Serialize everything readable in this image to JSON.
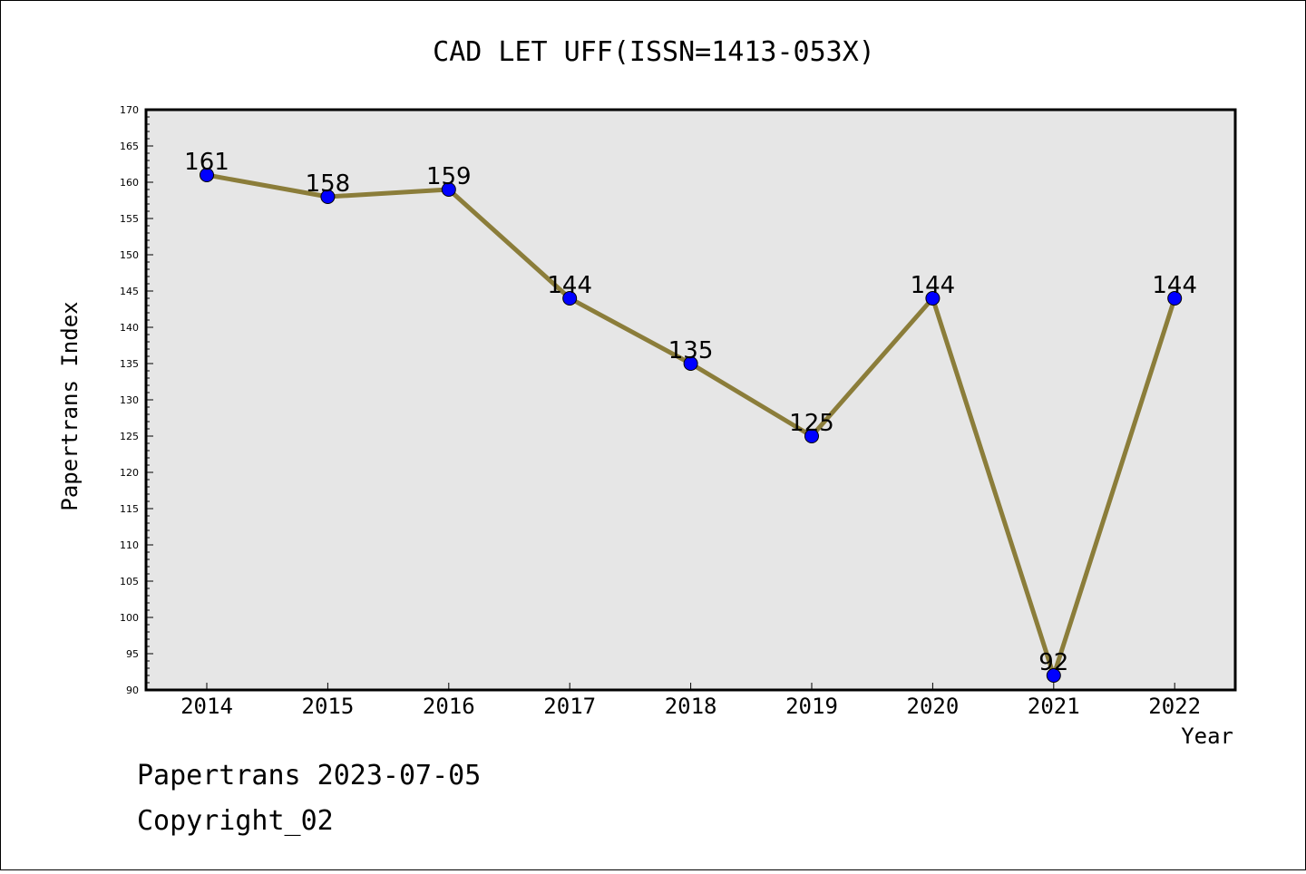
{
  "title": "CAD LET UFF(ISSN=1413-053X)",
  "footer": {
    "line1": "Papertrans 2023-07-05",
    "line2": "Copyright_02"
  },
  "colors": {
    "line": "#8b7d3a",
    "marker": "#0000ff",
    "plot_bg": "#e6e6e6"
  },
  "chart_data": {
    "type": "line",
    "title": "CAD LET UFF(ISSN=1413-053X)",
    "xlabel": "Year",
    "ylabel": "Papertrans Index",
    "categories": [
      "2014",
      "2015",
      "2016",
      "2017",
      "2018",
      "2019",
      "2020",
      "2021",
      "2022"
    ],
    "series": [
      {
        "values": [
          161,
          158,
          159,
          144,
          135,
          125,
          144,
          92,
          144
        ]
      }
    ],
    "ylim": [
      90,
      170
    ],
    "yticks": [
      90,
      95,
      100,
      105,
      110,
      115,
      120,
      125,
      130,
      135,
      140,
      145,
      150,
      155,
      160,
      165,
      170
    ],
    "ytick_minor_step": 1,
    "grid": false,
    "data_labels": true,
    "legend": "none"
  }
}
